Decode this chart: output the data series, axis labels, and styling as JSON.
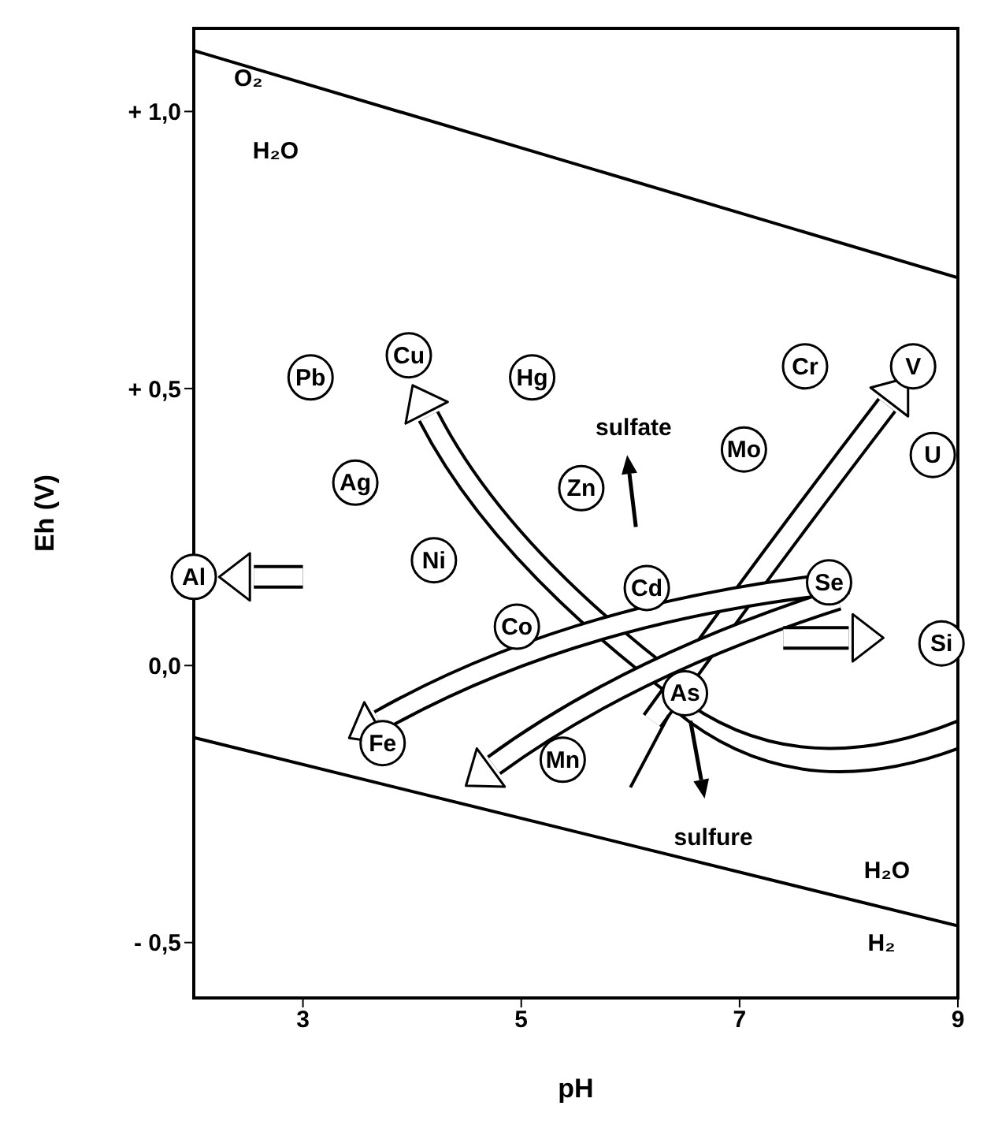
{
  "chart_data": {
    "type": "line",
    "xlabel": "pH",
    "ylabel": "Eh (V)",
    "x": [
      2,
      9
    ],
    "series": [
      {
        "color": "#000000",
        "values": [
          1.11,
          0.7
        ]
      },
      {
        "color": "#000000",
        "values": [
          -0.13,
          -0.47
        ]
      }
    ],
    "xlim": [
      2,
      9
    ],
    "ylim": [
      -0.6,
      1.15
    ],
    "xticks": [
      3,
      5,
      7,
      9
    ],
    "yticks": [
      {
        "value": 1,
        "label": "+ 1,0"
      },
      {
        "value": 0.5,
        "label": "+ 0,5"
      },
      {
        "value": 0,
        "label": "0,0"
      },
      {
        "value": -0.5,
        "label": "- 0,5"
      }
    ],
    "marker": "none",
    "line_style": "solid",
    "annotations": [
      "O₂",
      "H₂O",
      "H₂O",
      "H₂",
      "sulfate",
      "sulfure",
      {
        "text": "Pb",
        "x": 3.07,
        "y": 0.52
      },
      {
        "text": "Cu",
        "x": 3.97,
        "y": 0.56
      },
      {
        "text": "Hg",
        "x": 5.1,
        "y": 0.52
      },
      {
        "text": "Cr",
        "x": 7.6,
        "y": 0.54
      },
      {
        "text": "V",
        "x": 8.59,
        "y": 0.54
      },
      {
        "text": "Mo",
        "x": 7.04,
        "y": 0.39
      },
      {
        "text": "U",
        "x": 8.77,
        "y": 0.38
      },
      {
        "text": "Ag",
        "x": 3.48,
        "y": 0.33
      },
      {
        "text": "Zn",
        "x": 5.55,
        "y": 0.32
      },
      {
        "text": "Ni",
        "x": 4.2,
        "y": 0.19
      },
      {
        "text": "Cd",
        "x": 6.15,
        "y": 0.14
      },
      {
        "text": "Se",
        "x": 7.82,
        "y": 0.15
      },
      {
        "text": "Al",
        "x": 2.0,
        "y": 0.16
      },
      {
        "text": "Co",
        "x": 4.96,
        "y": 0.07
      },
      {
        "text": "Si",
        "x": 8.85,
        "y": 0.04
      },
      {
        "text": "As",
        "x": 6.5,
        "y": -0.05
      },
      {
        "text": "Fe",
        "x": 3.73,
        "y": -0.14
      },
      {
        "text": "Mn",
        "x": 5.38,
        "y": -0.17
      }
    ]
  }
}
